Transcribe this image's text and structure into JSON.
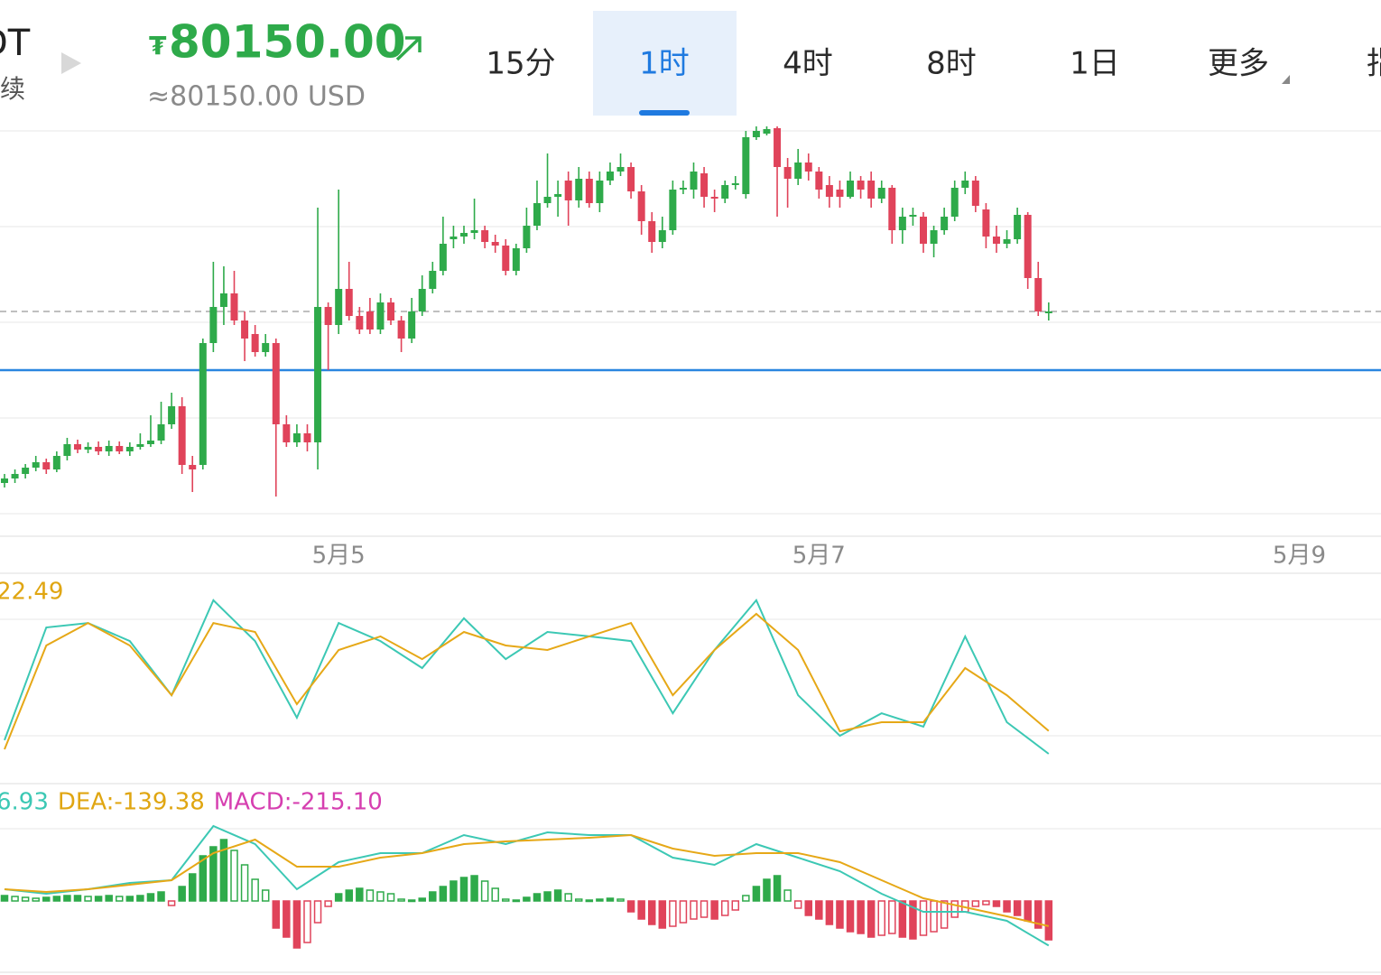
{
  "header": {
    "symbol": "DT",
    "contract": "永续",
    "currency_sign": "₮",
    "price": "80150.00",
    "price_usd": "≈80150.00 USD"
  },
  "tabs": [
    "15分",
    "1时",
    "4时",
    "8时",
    "1日",
    "更多",
    "指"
  ],
  "active_tab": 1,
  "chart_data": [
    {
      "type": "candlestick",
      "up_color": "#2eaa4a",
      "down_color": "#e0435a",
      "xlim": [
        0,
        132
      ],
      "xticks": [
        {
          "value": 32,
          "label": "5月5"
        },
        {
          "value": 78,
          "label": "5月7"
        },
        {
          "value": 124,
          "label": "5月9"
        }
      ],
      "ylim": [
        79700,
        80570
      ],
      "yticks": [
        79702,
        79914,
        80126,
        80338,
        80550
      ],
      "grid": true,
      "last_price": 80150,
      "level_line": 80020,
      "ohlc": [
        [
          79770,
          79790,
          79760,
          79780
        ],
        [
          79780,
          79800,
          79770,
          79790
        ],
        [
          79790,
          79812,
          79780,
          79804
        ],
        [
          79804,
          79830,
          79796,
          79816
        ],
        [
          79816,
          79824,
          79790,
          79800
        ],
        [
          79800,
          79840,
          79794,
          79830
        ],
        [
          79830,
          79870,
          79820,
          79856
        ],
        [
          79856,
          79866,
          79836,
          79844
        ],
        [
          79844,
          79860,
          79836,
          79850
        ],
        [
          79850,
          79862,
          79832,
          79840
        ],
        [
          79840,
          79864,
          79830,
          79852
        ],
        [
          79852,
          79862,
          79834,
          79840
        ],
        [
          79840,
          79860,
          79830,
          79850
        ],
        [
          79850,
          79880,
          79844,
          79856
        ],
        [
          79856,
          79920,
          79850,
          79864
        ],
        [
          79864,
          79950,
          79856,
          79900
        ],
        [
          79900,
          79970,
          79890,
          79940
        ],
        [
          79940,
          79960,
          79790,
          79810
        ],
        [
          79810,
          79830,
          79750,
          79800
        ],
        [
          79810,
          80090,
          79800,
          80080
        ],
        [
          80080,
          80260,
          80060,
          80160
        ],
        [
          80160,
          80250,
          80120,
          80190
        ],
        [
          80190,
          80240,
          80120,
          80130
        ],
        [
          80130,
          80150,
          80040,
          80090
        ],
        [
          80100,
          80120,
          80050,
          80060
        ],
        [
          80060,
          80100,
          80050,
          80080
        ],
        [
          80080,
          80090,
          79740,
          79900
        ],
        [
          79900,
          79920,
          79850,
          79860
        ],
        [
          79860,
          79900,
          79850,
          79880
        ],
        [
          79880,
          79900,
          79840,
          79860
        ],
        [
          79860,
          80380,
          79800,
          80160
        ],
        [
          80160,
          80170,
          80020,
          80120
        ],
        [
          80120,
          80420,
          80100,
          80200
        ],
        [
          80200,
          80260,
          80130,
          80140
        ],
        [
          80140,
          80160,
          80100,
          80110
        ],
        [
          80150,
          80180,
          80100,
          80110
        ],
        [
          80110,
          80190,
          80100,
          80170
        ],
        [
          80170,
          80180,
          80120,
          80130
        ],
        [
          80130,
          80140,
          80060,
          80090
        ],
        [
          80090,
          80180,
          80080,
          80150
        ],
        [
          80150,
          80230,
          80140,
          80200
        ],
        [
          80200,
          80260,
          80190,
          80240
        ],
        [
          80240,
          80360,
          80230,
          80300
        ],
        [
          80310,
          80340,
          80290,
          80316
        ],
        [
          80316,
          80340,
          80300,
          80324
        ],
        [
          80324,
          80400,
          80310,
          80330
        ],
        [
          80330,
          80340,
          80290,
          80304
        ],
        [
          80304,
          80320,
          80280,
          80296
        ],
        [
          80296,
          80310,
          80230,
          80240
        ],
        [
          80240,
          80300,
          80230,
          80290
        ],
        [
          80290,
          80380,
          80280,
          80340
        ],
        [
          80340,
          80440,
          80330,
          80390
        ],
        [
          80390,
          80500,
          80380,
          80404
        ],
        [
          80404,
          80440,
          80360,
          80410
        ],
        [
          80440,
          80460,
          80340,
          80396
        ],
        [
          80396,
          80470,
          80380,
          80444
        ],
        [
          80444,
          80460,
          80380,
          80390
        ],
        [
          80390,
          80460,
          80370,
          80440
        ],
        [
          80440,
          80480,
          80430,
          80460
        ],
        [
          80460,
          80500,
          80450,
          80470
        ],
        [
          80470,
          80480,
          80400,
          80416
        ],
        [
          80416,
          80430,
          80320,
          80350
        ],
        [
          80350,
          80370,
          80280,
          80304
        ],
        [
          80304,
          80360,
          80290,
          80330
        ],
        [
          80330,
          80440,
          80320,
          80420
        ],
        [
          80420,
          80440,
          80410,
          80424
        ],
        [
          80420,
          80480,
          80400,
          80460
        ],
        [
          80456,
          80470,
          80380,
          80404
        ],
        [
          80404,
          80420,
          80370,
          80400
        ],
        [
          80400,
          80440,
          80390,
          80430
        ],
        [
          80430,
          80450,
          80420,
          80434
        ],
        [
          80410,
          80550,
          80400,
          80536
        ],
        [
          80536,
          80560,
          80530,
          80550
        ],
        [
          80544,
          80560,
          80540,
          80554
        ],
        [
          80556,
          80560,
          80360,
          80470
        ],
        [
          80470,
          80490,
          80380,
          80444
        ],
        [
          80444,
          80510,
          80430,
          80480
        ],
        [
          80480,
          80500,
          80440,
          80460
        ],
        [
          80460,
          80470,
          80400,
          80420
        ],
        [
          80430,
          80450,
          80380,
          80404
        ],
        [
          80420,
          80440,
          80380,
          80404
        ],
        [
          80404,
          80460,
          80400,
          80440
        ],
        [
          80440,
          80450,
          80400,
          80420
        ],
        [
          80440,
          80460,
          80380,
          80400
        ],
        [
          80400,
          80440,
          80390,
          80424
        ],
        [
          80424,
          80430,
          80300,
          80330
        ],
        [
          80330,
          80380,
          80300,
          80360
        ],
        [
          80360,
          80380,
          80340,
          80364
        ],
        [
          80360,
          80370,
          80280,
          80300
        ],
        [
          80300,
          80340,
          80270,
          80330
        ],
        [
          80330,
          80380,
          80320,
          80360
        ],
        [
          80360,
          80440,
          80350,
          80424
        ],
        [
          80424,
          80460,
          80410,
          80440
        ],
        [
          80440,
          80450,
          80370,
          80384
        ],
        [
          80376,
          80390,
          80290,
          80316
        ],
        [
          80316,
          80340,
          80280,
          80300
        ],
        [
          80300,
          80330,
          80290,
          80310
        ],
        [
          80310,
          80380,
          80300,
          80364
        ],
        [
          80364,
          80370,
          80200,
          80224
        ],
        [
          80224,
          80260,
          80140,
          80150
        ],
        [
          80146,
          80170,
          80130,
          80150
        ]
      ]
    },
    {
      "type": "line",
      "label": "22.49",
      "label_color": "#e0a612",
      "xlim": [
        0,
        132
      ],
      "ylim": [
        0,
        100
      ],
      "yticks": [
        20,
        80
      ],
      "grid": true,
      "x": [
        0,
        4,
        8,
        12,
        16,
        20,
        24,
        28,
        32,
        36,
        40,
        44,
        48,
        52,
        56,
        60,
        64,
        68,
        72,
        76,
        80,
        84,
        88,
        92,
        96,
        100
      ],
      "series": [
        {
          "color": "#3cc8b4",
          "values": [
            17.7,
            75.8,
            78.1,
            68.8,
            40.9,
            89.8,
            68.8,
            29.3,
            78.1,
            68.8,
            54.9,
            80.5,
            59.5,
            73.5,
            71.2,
            68.8,
            31.6,
            64.2,
            89.8,
            40.9,
            20.0,
            31.6,
            24.7,
            71.2,
            27.0,
            10.7
          ]
        },
        {
          "color": "#e6a817",
          "values": [
            13.0,
            66.5,
            78.1,
            66.5,
            40.9,
            78.1,
            73.5,
            36.3,
            64.2,
            71.2,
            59.5,
            73.5,
            66.5,
            64.2,
            71.2,
            78.1,
            40.9,
            64.2,
            82.8,
            64.2,
            22.3,
            27.0,
            27.0,
            54.9,
            40.9,
            22.49
          ]
        }
      ]
    },
    {
      "type": "macd",
      "labels": [
        {
          "text": "6.93",
          "color": "#3cc8b4"
        },
        {
          "text": "DEA:-139.38",
          "color": "#e0a612"
        },
        {
          "text": "MACD:-215.10",
          "color": "#d63fb0"
        }
      ],
      "xlim": [
        0,
        132
      ],
      "ylim": [
        -400,
        440
      ],
      "yticks": [
        400
      ],
      "grid": true,
      "up_color": "#2eaa4a",
      "down_color": "#e0435a",
      "x": [
        0,
        4,
        8,
        12,
        16,
        20,
        24,
        28,
        32,
        36,
        40,
        44,
        48,
        52,
        56,
        60,
        64,
        68,
        72,
        76,
        80,
        84,
        88,
        92,
        96,
        100
      ],
      "series": [
        {
          "color": "#3cc8b4",
          "values": [
            65,
            40,
            65,
            100,
            115,
            415,
            315,
            65,
            215,
            265,
            265,
            365,
            315,
            380,
            365,
            365,
            240,
            200,
            315,
            240,
            165,
            40,
            -60,
            -60,
            -110,
            -246.93
          ]
        },
        {
          "color": "#e6a817",
          "values": [
            65,
            50,
            65,
            90,
            115,
            265,
            340,
            190,
            190,
            240,
            265,
            315,
            330,
            340,
            350,
            365,
            290,
            250,
            265,
            265,
            215,
            115,
            15,
            -35,
            -85,
            -139.38
          ]
        }
      ],
      "histogram": [
        30,
        25,
        20,
        15,
        20,
        25,
        30,
        30,
        25,
        25,
        30,
        25,
        25,
        30,
        40,
        50,
        -25,
        80,
        150,
        250,
        300,
        340,
        280,
        200,
        120,
        60,
        -150,
        -200,
        -260,
        -230,
        -120,
        -30,
        40,
        60,
        70,
        60,
        50,
        40,
        10,
        5,
        15,
        50,
        80,
        110,
        130,
        140,
        110,
        70,
        10,
        5,
        20,
        40,
        50,
        60,
        40,
        10,
        5,
        10,
        15,
        10,
        -60,
        -100,
        -130,
        -150,
        -140,
        -120,
        -100,
        -90,
        -100,
        -80,
        -50,
        30,
        80,
        120,
        140,
        60,
        -40,
        -80,
        -100,
        -130,
        -150,
        -170,
        -180,
        -200,
        -190,
        -180,
        -200,
        -210,
        -190,
        -170,
        -150,
        -90,
        -60,
        -30,
        -20,
        -30,
        -60,
        -80,
        -110,
        -150,
        -215.1
      ]
    }
  ]
}
